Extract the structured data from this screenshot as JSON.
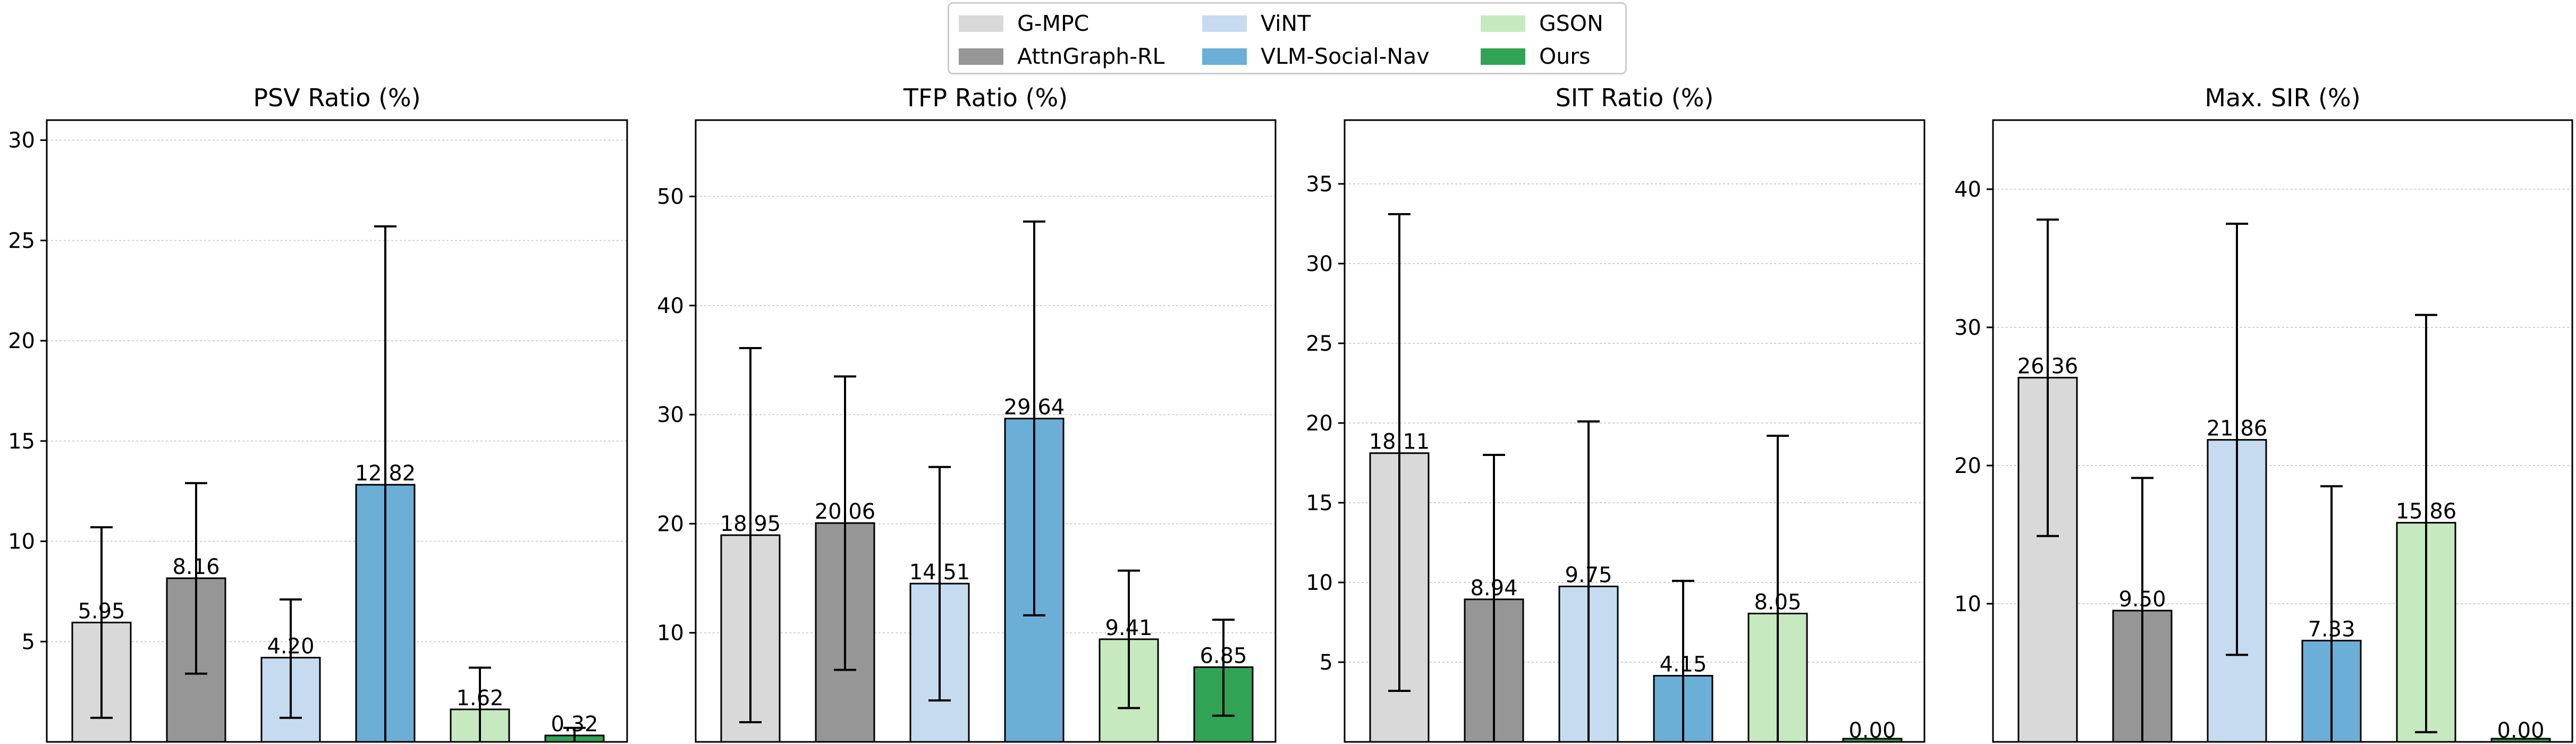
{
  "legend": {
    "items": [
      {
        "name": "G-MPC",
        "color": "#d9d9d9"
      },
      {
        "name": "AttnGraph-RL",
        "color": "#969696"
      },
      {
        "name": "ViNT",
        "color": "#c6dbef"
      },
      {
        "name": "VLM-Social-Nav",
        "color": "#6baed6"
      },
      {
        "name": "GSON",
        "color": "#c7e9c0"
      },
      {
        "name": "Ours",
        "color": "#31a354"
      }
    ]
  },
  "chart_data": [
    {
      "type": "bar",
      "title": "PSV Ratio (%)",
      "categories": [
        "G-MPC",
        "AttnGraph-RL",
        "ViNT",
        "VLM-Social-Nav",
        "GSON",
        "Ours"
      ],
      "values": [
        5.95,
        8.16,
        4.2,
        12.82,
        1.62,
        0.32
      ],
      "labels": [
        "5.95",
        "8.16",
        "4.20",
        "12.82",
        "1.62",
        "0.32"
      ],
      "error_low": [
        1.2,
        3.4,
        1.2,
        0.0,
        0.0,
        0.0
      ],
      "error_high": [
        10.7,
        12.9,
        7.1,
        25.7,
        3.7,
        0.7
      ],
      "ylim": [
        0,
        31
      ],
      "yticks": [
        5,
        10,
        15,
        20,
        25,
        30
      ],
      "ytick_labels": [
        "5",
        "10",
        "15",
        "20",
        "25",
        "30"
      ],
      "grid": true,
      "xlabel": "",
      "ylabel": ""
    },
    {
      "type": "bar",
      "title": "TFP Ratio (%)",
      "categories": [
        "G-MPC",
        "AttnGraph-RL",
        "ViNT",
        "VLM-Social-Nav",
        "GSON",
        "Ours"
      ],
      "values": [
        18.95,
        20.06,
        14.51,
        29.64,
        9.41,
        6.85
      ],
      "labels": [
        "18.95",
        "20.06",
        "14.51",
        "29.64",
        "9.41",
        "6.85"
      ],
      "error_low": [
        1.8,
        6.6,
        3.8,
        11.6,
        3.1,
        2.4
      ],
      "error_high": [
        36.1,
        33.5,
        25.2,
        47.7,
        15.7,
        11.2
      ],
      "ylim": [
        0,
        57
      ],
      "yticks": [
        10,
        20,
        30,
        40,
        50
      ],
      "ytick_labels": [
        "10",
        "20",
        "30",
        "40",
        "50"
      ],
      "grid": true,
      "xlabel": "",
      "ylabel": ""
    },
    {
      "type": "bar",
      "title": "SIT Ratio (%)",
      "categories": [
        "G-MPC",
        "AttnGraph-RL",
        "ViNT",
        "VLM-Social-Nav",
        "GSON",
        "Ours"
      ],
      "values": [
        18.11,
        8.94,
        9.75,
        4.15,
        8.05,
        0.0
      ],
      "labels": [
        "18.11",
        "8.94",
        "9.75",
        "4.15",
        "8.05",
        "0.00"
      ],
      "error_low": [
        3.2,
        0.0,
        0.0,
        0.0,
        0.0,
        null
      ],
      "error_high": [
        33.1,
        18.0,
        20.1,
        10.1,
        19.2,
        null
      ],
      "ylim": [
        0,
        39
      ],
      "yticks": [
        5,
        10,
        15,
        20,
        25,
        30,
        35
      ],
      "ytick_labels": [
        "5",
        "10",
        "15",
        "20",
        "25",
        "30",
        "35"
      ],
      "grid": true,
      "xlabel": "",
      "ylabel": ""
    },
    {
      "type": "bar",
      "title": "Max. SIR (%)",
      "categories": [
        "G-MPC",
        "AttnGraph-RL",
        "ViNT",
        "VLM-Social-Nav",
        "GSON",
        "Ours"
      ],
      "values": [
        26.36,
        9.5,
        21.86,
        7.33,
        15.86,
        0.0
      ],
      "labels": [
        "26.36",
        "9.50",
        "21.86",
        "7.33",
        "15.86",
        "0.00"
      ],
      "error_low": [
        14.9,
        0.0,
        6.3,
        0.0,
        0.7,
        null
      ],
      "error_high": [
        37.8,
        19.1,
        37.5,
        18.5,
        30.9,
        null
      ],
      "ylim": [
        0,
        45
      ],
      "yticks": [
        10,
        20,
        30,
        40
      ],
      "ytick_labels": [
        "10",
        "20",
        "30",
        "40"
      ],
      "grid": true,
      "xlabel": "",
      "ylabel": ""
    }
  ]
}
